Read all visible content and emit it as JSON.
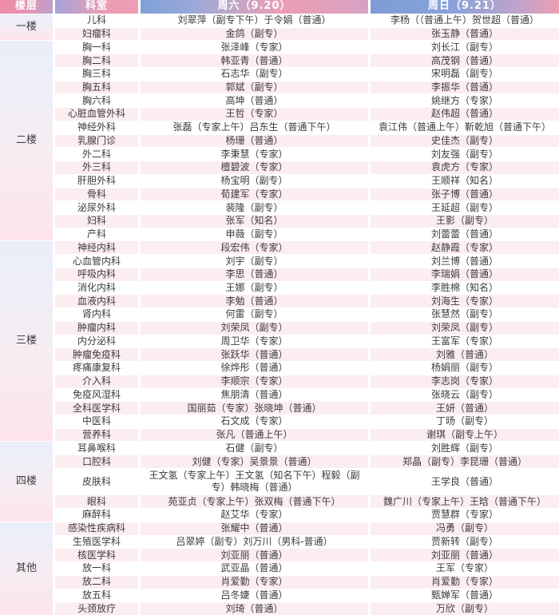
{
  "header": {
    "floor_label": "楼层",
    "dept_label": "科室",
    "sat_label": "周六（9.20）",
    "sun_label": "周日（9.21）"
  },
  "colors": {
    "header_pink": "#ee9db3",
    "header_blue": "#7f9fd7",
    "row_shade": "#fcedf0",
    "floor_gradient_top": "#e9eef9",
    "floor_gradient_bottom": "#fce4ea",
    "text": "#3c3c3c"
  },
  "sections": [
    {
      "floor": "一楼",
      "depts": [
        {
          "name": "儿科",
          "sat": "刘翠萍（副专下午）于令娟（普通）",
          "sun": "李杨（（普通上午）贺世超（普通）"
        },
        {
          "name": "妇瘤科",
          "sat": "金鸽（副专）",
          "sun": "张玉静（普通）"
        }
      ]
    },
    {
      "floor": "二楼",
      "depts": [
        {
          "name": "胸一科",
          "sat": "张泽峰（专家）",
          "sun": "刘长江（副专）"
        },
        {
          "name": "胸二科",
          "sat": "韩亚青（普通）",
          "sun": "高茂钢（普通）"
        },
        {
          "name": "胸三科",
          "sat": "石志华（副专）",
          "sun": "宋明磊（副专）"
        },
        {
          "name": "胸五科",
          "sat": "郭斌（副专）",
          "sun": "李振华（普通）"
        },
        {
          "name": "胸六科",
          "sat": "高坤（普通）",
          "sun": "姚继方（专家）"
        },
        {
          "name": "心脏血管外科",
          "sat": "王哲（专家）",
          "sun": "赵伟超（普通）"
        },
        {
          "name": "神经外科",
          "sat": "张磊（专家上午）吕东生（普通下午）",
          "sun": "袁江伟（普通上午）靳乾旭（普通下午）"
        },
        {
          "name": "乳腺门诊",
          "sat": "杨珊（普通）",
          "sun": "史佳杰（副专）"
        },
        {
          "name": "外二科",
          "sat": "李秉慧（专家）",
          "sun": "刘友强（副专）"
        },
        {
          "name": "外三科",
          "sat": "檀碧波（专家）",
          "sun": "袁虎方（专家）"
        },
        {
          "name": "肝胆外科",
          "sat": "杨宝明（副专）",
          "sun": "王顺祥（知名）"
        },
        {
          "name": "骨科",
          "sat": "荀建军（专家）",
          "sun": "张子博（普通）"
        },
        {
          "name": "泌尿外科",
          "sat": "裴隆（副专）",
          "sun": "王延超（副专）"
        },
        {
          "name": "妇科",
          "sat": "张军（知名）",
          "sun": "王影（副专）"
        },
        {
          "name": "产科",
          "sat": "申薇（副专）",
          "sun": "刘蕾蕾（普通）"
        }
      ]
    },
    {
      "floor": "三楼",
      "depts": [
        {
          "name": "神经内科",
          "sat": "段宏伟（专家）",
          "sun": "赵静霞（专家）"
        },
        {
          "name": "心血管内科",
          "sat": "刘宇（副专）",
          "sun": "刘兰博（普通）"
        },
        {
          "name": "呼吸内科",
          "sat": "李思（普通）",
          "sun": "李瑞娟（普通）"
        },
        {
          "name": "消化内科",
          "sat": "王娜（副专）",
          "sun": "李胜棉（知名）"
        },
        {
          "name": "血液内科",
          "sat": "李勉（普通）",
          "sun": "刘海生（专家）"
        },
        {
          "name": "肾内科",
          "sat": "何雷（副专）",
          "sun": "张慧然（副专）"
        },
        {
          "name": "肿瘤内科",
          "sat": "刘荣凤（副专）",
          "sun": "刘荣凤（副专）"
        },
        {
          "name": "内分泌科",
          "sat": "周卫华（专家）",
          "sun": "王富军（专家）"
        },
        {
          "name": "肿瘤免疫科",
          "sat": "张跃华（普通）",
          "sun": "刘雅（普通）"
        },
        {
          "name": "疼痛康复科",
          "sat": "徐烨彤（普通）",
          "sun": "杨娟丽（副专）"
        },
        {
          "name": "介入科",
          "sat": "李顺宗（专家）",
          "sun": "李志岗（专家）"
        },
        {
          "name": "免疫风湿科",
          "sat": "焦朋清（普通）",
          "sun": "张晓云（副专）"
        },
        {
          "name": "全科医学科",
          "sat": "国丽茹（专家）张晓坤（普通）",
          "sun": "王妍（普通）"
        },
        {
          "name": "中医科",
          "sat": "石文成（专家）",
          "sun": "丁旸（副专）"
        },
        {
          "name": "营养科",
          "sat": "张凡（普通上午）",
          "sun": "谢琪（副专上午）"
        }
      ]
    },
    {
      "floor": "四楼",
      "depts": [
        {
          "name": "耳鼻喉科",
          "sat": "石健（副专）",
          "sun": "刘胜辉（副专）"
        },
        {
          "name": "口腔科",
          "sat": "刘健（专家）吴景景（普通）",
          "sun": "郑晶（副专）李昆珊（普通）"
        },
        {
          "name": "皮肤科",
          "tall": true,
          "sat": "王文氢（专家上午）王文氢（知名下午）程毅（副专）韩晓梅（普通）",
          "sun": "王学良（普通）"
        },
        {
          "name": "眼科",
          "sat": "苑亚贞（专家上午）张双梅（普通下午）",
          "sun": "魏广川（专家上午）王晗（普通下午）"
        },
        {
          "name": "麻醉科",
          "sat": "赵艾华（专家）",
          "sun": "贾慧群（专家）"
        }
      ]
    },
    {
      "floor": "其他",
      "depts": [
        {
          "name": "感染性疾病科",
          "sat": "张耀中（普通）",
          "sun": "冯勇（副专）"
        },
        {
          "name": "生殖医学科",
          "sat": "吕翠婷（副专）刘万川（男科-普通）",
          "sun": "贾新转（副专）"
        },
        {
          "name": "核医学科",
          "sat": "刘亚丽（普通）",
          "sun": "刘亚丽（普通）"
        },
        {
          "name": "放一科",
          "sat": "武亚晶（普通）",
          "sun": "王军（专家）"
        },
        {
          "name": "放二科",
          "sat": "肖爱勤（专家）",
          "sun": "肖爱勤（专家）"
        },
        {
          "name": "放五科",
          "sat": "吕冬婕（普通）",
          "sun": "甄婵军（普通）"
        },
        {
          "name": "头颈放疗",
          "sat": "刘琦（普通）",
          "sun": "万欣（副专）"
        }
      ]
    }
  ]
}
